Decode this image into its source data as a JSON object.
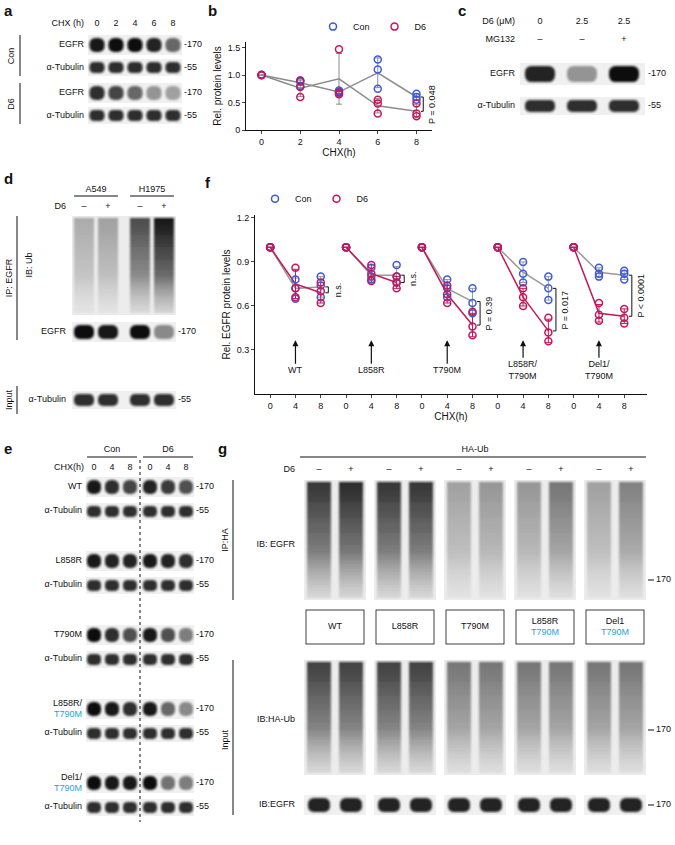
{
  "chart_data": [
    {
      "letter": "b",
      "type": "scatter",
      "x": [
        0,
        2,
        4,
        6,
        8
      ],
      "x_label": "CHX(h)",
      "y_label": "Rel. protein levels",
      "xlim": [
        -0.8,
        8.8
      ],
      "xticks": [
        0,
        2,
        4,
        6,
        8
      ],
      "ylim": [
        0,
        1.6
      ],
      "yticks": [
        0,
        0.5,
        {
          "value": 1,
          "label": "1.0"
        },
        1.5
      ],
      "legend": "top right",
      "marker": "circle-open",
      "series": [
        {
          "name": "Con",
          "color": "#3d5bd9",
          "replicates": [
            [
              1,
              1,
              1
            ],
            [
              0.9,
              0.88,
              0.8
            ],
            [
              0.72,
              0.7,
              0.66
            ],
            [
              1.28,
              1.1,
              0.75
            ],
            [
              0.66,
              0.6,
              0.55
            ]
          ],
          "mean": [
            1,
            0.86,
            0.69,
            1.04,
            0.6
          ],
          "error": [
            0,
            0.05,
            0.03,
            0.27,
            0.06
          ]
        },
        {
          "name": "D6",
          "color": "#c2185b",
          "replicates": [
            [
              1,
              1,
              1
            ],
            [
              0.78,
              0.6,
              0.9
            ],
            [
              0.68,
              0.65,
              1.47
            ],
            [
              0.55,
              0.3,
              0.48
            ],
            [
              0.48,
              0.25,
              0.3
            ]
          ],
          "mean": [
            1,
            0.76,
            0.93,
            0.44,
            0.34
          ],
          "error": [
            0,
            0.15,
            0.46,
            0.13,
            0.12
          ]
        }
      ],
      "annotations": [
        {
          "text": "P = 0.048",
          "x": 8
        }
      ]
    },
    {
      "letter": "f",
      "type": "scatter",
      "categories": [
        "0",
        "4",
        "8",
        "0",
        "4",
        "8",
        "0",
        "4",
        "8",
        "0",
        "4",
        "8",
        "0",
        "4",
        "8"
      ],
      "x_label": "CHX(h)",
      "y_label": "Rel. EGFR protein levels",
      "ylim": [
        0,
        1.22
      ],
      "yticks": [
        0.3,
        0.6,
        0.9,
        1.2
      ],
      "legend": "top left",
      "marker": "circle-open",
      "groups": [
        [
          "WT"
        ],
        [
          "L858R"
        ],
        [
          "T790M"
        ],
        [
          "L858R/",
          "T790M"
        ],
        [
          "Del1/",
          "T790M"
        ]
      ],
      "series": [
        {
          "name": "Con",
          "color": "#3d5bd9",
          "replicates": [
            [
              1,
              1,
              1
            ],
            [
              0.78,
              0.72,
              0.65
            ],
            [
              0.8,
              0.74,
              0.66
            ],
            [
              1,
              1,
              1
            ],
            [
              0.86,
              0.8,
              0.78
            ],
            [
              0.88,
              0.8,
              0.76
            ],
            [
              1,
              1,
              1
            ],
            [
              0.78,
              0.72,
              0.66
            ],
            [
              0.72,
              0.62,
              0.55
            ],
            [
              1,
              1,
              1
            ],
            [
              0.9,
              0.82,
              0.76
            ],
            [
              0.8,
              0.72,
              0.64
            ],
            [
              1,
              1,
              1
            ],
            [
              0.86,
              0.82,
              0.8
            ],
            [
              0.84,
              0.82,
              0.78
            ]
          ],
          "mean": [
            1,
            0.72,
            0.73,
            1,
            0.81,
            0.81,
            1,
            0.72,
            0.63,
            1,
            0.83,
            0.72,
            1,
            0.83,
            0.81
          ],
          "error": [
            0,
            0.07,
            0.07,
            0,
            0.04,
            0.06,
            0,
            0.06,
            0.09,
            0,
            0.07,
            0.08,
            0,
            0.03,
            0.03
          ]
        },
        {
          "name": "D6",
          "color": "#c2185b",
          "replicates": [
            [
              1,
              1,
              1
            ],
            [
              0.86,
              0.72,
              0.66
            ],
            [
              0.76,
              0.7,
              0.62
            ],
            [
              1,
              1,
              1
            ],
            [
              0.88,
              0.82,
              0.77
            ],
            [
              0.8,
              0.76,
              0.72
            ],
            [
              1,
              1,
              1
            ],
            [
              0.74,
              0.68,
              0.62
            ],
            [
              0.56,
              0.46,
              0.4
            ],
            [
              1,
              1,
              1
            ],
            [
              0.72,
              0.66,
              0.6
            ],
            [
              0.52,
              0.42,
              0.36
            ],
            [
              1,
              1,
              1
            ],
            [
              0.62,
              0.54,
              0.5
            ],
            [
              0.58,
              0.52,
              0.48
            ]
          ],
          "mean": [
            1,
            0.75,
            0.69,
            1,
            0.82,
            0.76,
            1,
            0.68,
            0.47,
            1,
            0.66,
            0.43,
            1,
            0.55,
            0.53
          ],
          "error": [
            0,
            0.1,
            0.07,
            0,
            0.06,
            0.04,
            0,
            0.06,
            0.08,
            0,
            0.06,
            0.08,
            0,
            0.06,
            0.05
          ]
        }
      ],
      "annotations": [
        {
          "text": "n.s.",
          "category": 2
        },
        {
          "text": "n.s.",
          "category": 5
        },
        {
          "text": "P = 0.39",
          "category": 8
        },
        {
          "text": "P = 0.017",
          "category": 11
        },
        {
          "text": "P < 0.0001",
          "category": 14
        }
      ]
    }
  ],
  "blots": {
    "a": {
      "letter": "a",
      "time_label": "CHX (h)",
      "times": [
        "0",
        "2",
        "4",
        "6",
        "8"
      ],
      "groups": [
        {
          "label": "Con",
          "rows": [
            {
              "label": "EGFR",
              "mw": "-170"
            },
            {
              "label": "α-Tubulin",
              "mw": "-55"
            }
          ]
        },
        {
          "label": "D6",
          "rows": [
            {
              "label": "EGFR",
              "mw": "-170"
            },
            {
              "label": "α-Tubulin",
              "mw": "-55"
            }
          ]
        }
      ]
    },
    "c": {
      "letter": "c",
      "conditions": [
        {
          "label": "D6 (μM)",
          "values": [
            "0",
            "2.5",
            "2.5"
          ]
        },
        {
          "label": "MG132",
          "values": [
            "–",
            "–",
            "+"
          ]
        }
      ],
      "rows": [
        {
          "label": "EGFR",
          "mw": "-170"
        },
        {
          "label": "α-Tubulin",
          "mw": "-55"
        }
      ]
    },
    "d": {
      "letter": "d",
      "cells": [
        "A549",
        "H1975"
      ],
      "treatment": {
        "label": "D6",
        "values": [
          "–",
          "+",
          "–",
          "+"
        ]
      },
      "ip": {
        "label": "IP: EGFR",
        "rows": [
          {
            "label": "IB: Ub"
          },
          {
            "label": "EGFR",
            "mw": "-170"
          }
        ]
      },
      "input": {
        "label": "Input",
        "rows": [
          {
            "label": "α-Tubulin",
            "mw": "-55"
          }
        ]
      }
    },
    "e": {
      "letter": "e",
      "groups": [
        "Con",
        "D6"
      ],
      "time_label": "CHX(h)",
      "times": [
        "0",
        "4",
        "8"
      ],
      "mw": "-170",
      "constructs": [
        {
          "lines": [
            {
              "text": "WT"
            }
          ]
        },
        {
          "lines": [
            {
              "text": "L858R"
            }
          ]
        },
        {
          "lines": [
            {
              "text": "T790M"
            }
          ]
        },
        {
          "lines": [
            {
              "text": "L858R/"
            },
            {
              "text": "T790M",
              "color": "#29a3d6"
            }
          ]
        },
        {
          "lines": [
            {
              "text": "Del1/"
            },
            {
              "text": "T790M",
              "color": "#29a3d6"
            }
          ]
        }
      ],
      "loading": {
        "label": "α-Tubulin",
        "mw": "-55"
      }
    },
    "g": {
      "letter": "g",
      "header": "HA-Ub",
      "treatment": {
        "label": "D6",
        "values": [
          "–",
          "+"
        ]
      },
      "ip": {
        "label": "IP:HA",
        "blot": "IB: EGFR",
        "mw": "170"
      },
      "constructs": [
        {
          "lines": [
            {
              "text": "WT"
            }
          ]
        },
        {
          "lines": [
            {
              "text": "L858R"
            }
          ]
        },
        {
          "lines": [
            {
              "text": "T790M"
            }
          ]
        },
        {
          "lines": [
            {
              "text": "L858R"
            },
            {
              "text": "T790M",
              "color": "#29a3d6"
            }
          ]
        },
        {
          "lines": [
            {
              "text": "Del1"
            },
            {
              "text": "T790M",
              "color": "#29a3d6"
            }
          ]
        }
      ],
      "input": {
        "label": "Input",
        "rows": [
          {
            "label": "IB:HA-Ub",
            "mw": "170"
          },
          {
            "label": "IB:EGFR",
            "mw": "170"
          }
        ]
      }
    }
  }
}
